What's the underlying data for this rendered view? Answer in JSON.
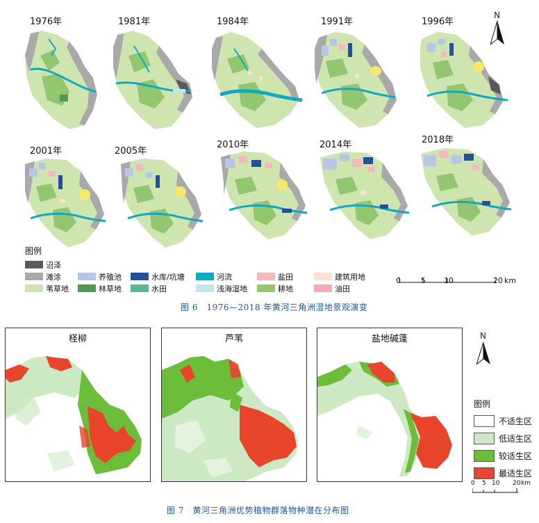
{
  "fig6": {
    "years": [
      "1976年",
      "1981年",
      "1984年",
      "1991年",
      "1996年",
      "2001年",
      "2005年",
      "2010年",
      "2014年",
      "2018年"
    ],
    "north": "N",
    "legend_title": "图例",
    "legend": [
      {
        "label": "沼泽",
        "color": "#5a5a5a"
      },
      {
        "label": "滩涂",
        "color": "#a9a9a9"
      },
      {
        "label": "苇草地",
        "color": "#cfe5b0"
      },
      {
        "label": "养殖池",
        "color": "#b7c6e6"
      },
      {
        "label": "林草地",
        "color": "#4f9a55"
      },
      {
        "label": "水库/坑塘",
        "color": "#234f9c"
      },
      {
        "label": "水田",
        "color": "#57b895"
      },
      {
        "label": "河流",
        "color": "#11a9c2"
      },
      {
        "label": "浅海湿地",
        "color": "#c4e4ee"
      },
      {
        "label": "盐田",
        "color": "#f3b9bd"
      },
      {
        "label": "耕地",
        "color": "#92c66f"
      },
      {
        "label": "建筑用地",
        "color": "#fbe3d2"
      },
      {
        "label": "油田",
        "color": "#f3aab2"
      }
    ],
    "scale": {
      "ticks": [
        "0",
        "5",
        "10",
        "20"
      ],
      "unit": "km"
    },
    "caption": "图 6　1976—2018 年黄河三角洲湿地景观演变"
  },
  "fig7": {
    "panels": [
      "柽柳",
      "芦苇",
      "盐地碱蓬"
    ],
    "north": "N",
    "legend_title": "图例",
    "legend": [
      {
        "label": "不适生区",
        "color": "#ffffff"
      },
      {
        "label": "低适生区",
        "color": "#cde9c4"
      },
      {
        "label": "较适生区",
        "color": "#6bbd3a"
      },
      {
        "label": "最适生区",
        "color": "#e8452c"
      }
    ],
    "scale": {
      "ticks": [
        "0",
        "5",
        "10",
        "20"
      ],
      "unit": "km"
    },
    "caption": "图 7　黄河三角洲优势植物群落物种潜在分布图"
  }
}
